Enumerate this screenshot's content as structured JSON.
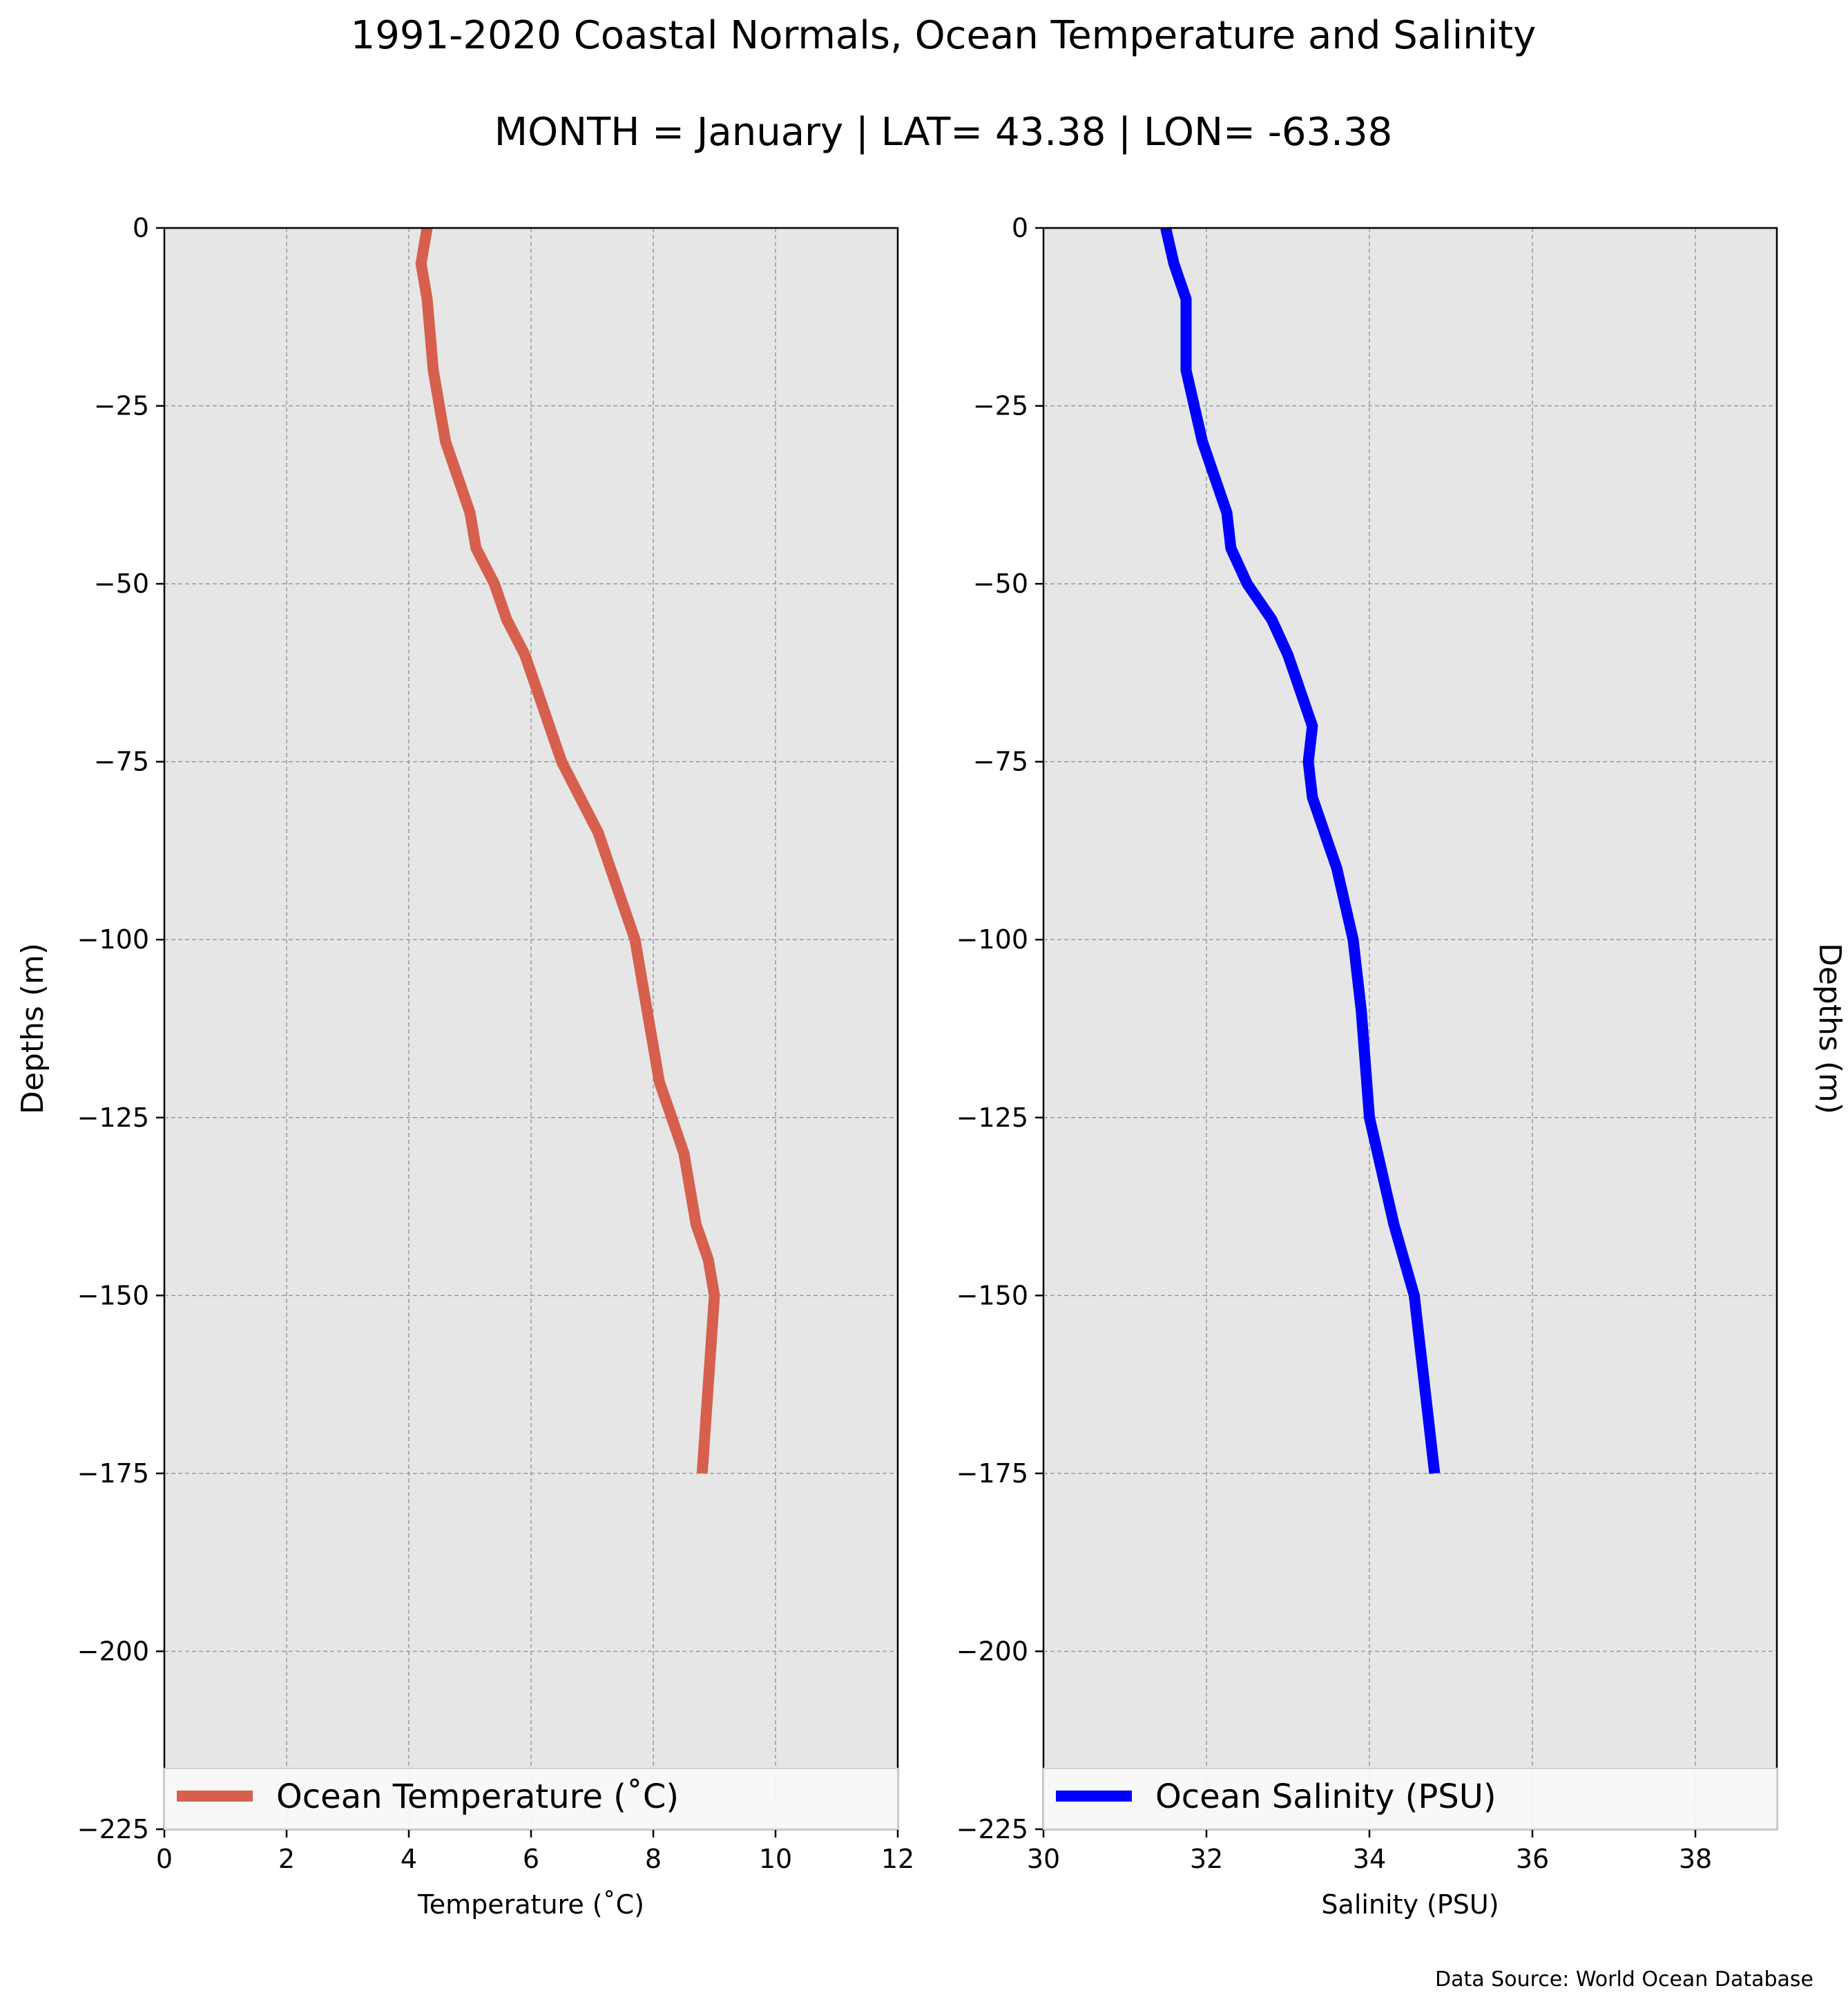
{
  "figure": {
    "title": "1991-2020 Coastal Normals, Ocean Temperature and Salinity",
    "subtitle": "MONTH = January | LAT= 43.38 | LON= -63.38",
    "source_note": "Data Source: World Ocean Database"
  },
  "chart_data": [
    {
      "type": "line",
      "xlabel": "Temperature ($^\\circ$C)",
      "xlabel_display": "Temperature (˚C)",
      "ylabel": "Depths (m)",
      "xlim": [
        0,
        12
      ],
      "ylim": [
        -225,
        0
      ],
      "xticks": [
        0,
        2,
        4,
        6,
        8,
        10,
        12
      ],
      "yticks": [
        0,
        -25,
        -50,
        -75,
        -100,
        -125,
        -150,
        -175,
        -200,
        -225
      ],
      "ytick_labels": [
        "0",
        "−25",
        "−50",
        "−75",
        "−100",
        "−125",
        "−150",
        "−175",
        "−200",
        "−225"
      ],
      "grid": true,
      "background": "#e6e6e6",
      "legend_position": "lower center",
      "series": [
        {
          "name": "Ocean Temperature (˚C)",
          "color": "#d6604d",
          "x": [
            4.3,
            4.2,
            4.3,
            4.4,
            4.6,
            4.8,
            5.0,
            5.1,
            5.4,
            5.6,
            5.9,
            6.1,
            6.3,
            6.5,
            6.8,
            7.1,
            7.3,
            7.5,
            7.7,
            7.9,
            8.1,
            8.3,
            8.5,
            8.7,
            8.9,
            9.0,
            8.8
          ],
          "y": [
            0,
            -5,
            -10,
            -20,
            -30,
            -35,
            -40,
            -45,
            -50,
            -55,
            -60,
            -65,
            -70,
            -75,
            -80,
            -85,
            -90,
            -95,
            -100,
            -110,
            -120,
            -125,
            -130,
            -140,
            -145,
            -150,
            -175
          ]
        }
      ]
    },
    {
      "type": "line",
      "xlabel": "Salinity (PSU)",
      "ylabel": "Depths (m)",
      "xlim": [
        30,
        39
      ],
      "ylim": [
        -225,
        0
      ],
      "xticks": [
        30,
        32,
        34,
        36,
        38
      ],
      "yticks": [
        0,
        -25,
        -50,
        -75,
        -100,
        -125,
        -150,
        -175,
        -200,
        -225
      ],
      "ytick_labels": [
        "0",
        "−25",
        "−50",
        "−75",
        "−100",
        "−125",
        "−150",
        "−175",
        "−200",
        "−225"
      ],
      "grid": true,
      "background": "#e6e6e6",
      "legend_position": "lower center",
      "series": [
        {
          "name": "Ocean Salinity (PSU)",
          "color": "#0000ff",
          "x": [
            31.5,
            31.6,
            31.75,
            31.75,
            31.85,
            31.95,
            32.1,
            32.25,
            32.3,
            32.5,
            32.8,
            33.0,
            33.3,
            33.25,
            33.3,
            33.45,
            33.6,
            33.8,
            33.9,
            34.0,
            34.3,
            34.55,
            34.8
          ],
          "y": [
            0,
            -5,
            -10,
            -20,
            -25,
            -30,
            -35,
            -40,
            -45,
            -50,
            -55,
            -60,
            -70,
            -75,
            -80,
            -85,
            -90,
            -100,
            -110,
            -125,
            -140,
            -150,
            -175
          ]
        }
      ]
    }
  ]
}
